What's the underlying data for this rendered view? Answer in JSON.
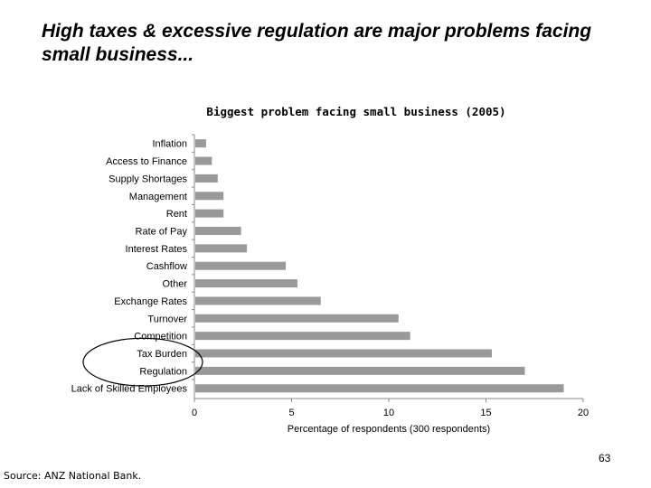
{
  "slide": {
    "title": "High taxes & excessive regulation are major problems facing small business...",
    "page_number": "63",
    "source": "Source: ANZ National Bank."
  },
  "colors": {
    "bar": "#999999",
    "axis": "#888888",
    "highlight_ellipse": "#000000"
  },
  "chart_data": {
    "type": "bar",
    "orientation": "horizontal",
    "title": "Biggest problem facing small business (2005)",
    "xlabel": "Percentage of respondents (300 respondents)",
    "ylabel": "",
    "xlim": [
      0,
      20
    ],
    "xticks": [
      0,
      5,
      10,
      15,
      20
    ],
    "grid": false,
    "categories": [
      "Inflation",
      "Access to Finance",
      "Supply Shortages",
      "Management",
      "Rent",
      "Rate of Pay",
      "Interest Rates",
      "Cashflow",
      "Other",
      "Exchange Rates",
      "Turnover",
      "Competition",
      "Tax Burden",
      "Regulation",
      "Lack of Skilled Employees"
    ],
    "values": [
      0.6,
      0.9,
      1.2,
      1.5,
      1.5,
      2.4,
      2.7,
      4.7,
      5.3,
      6.5,
      10.5,
      11.1,
      15.3,
      17.0,
      19.0
    ],
    "highlighted_categories": [
      "Tax Burden",
      "Regulation"
    ]
  }
}
